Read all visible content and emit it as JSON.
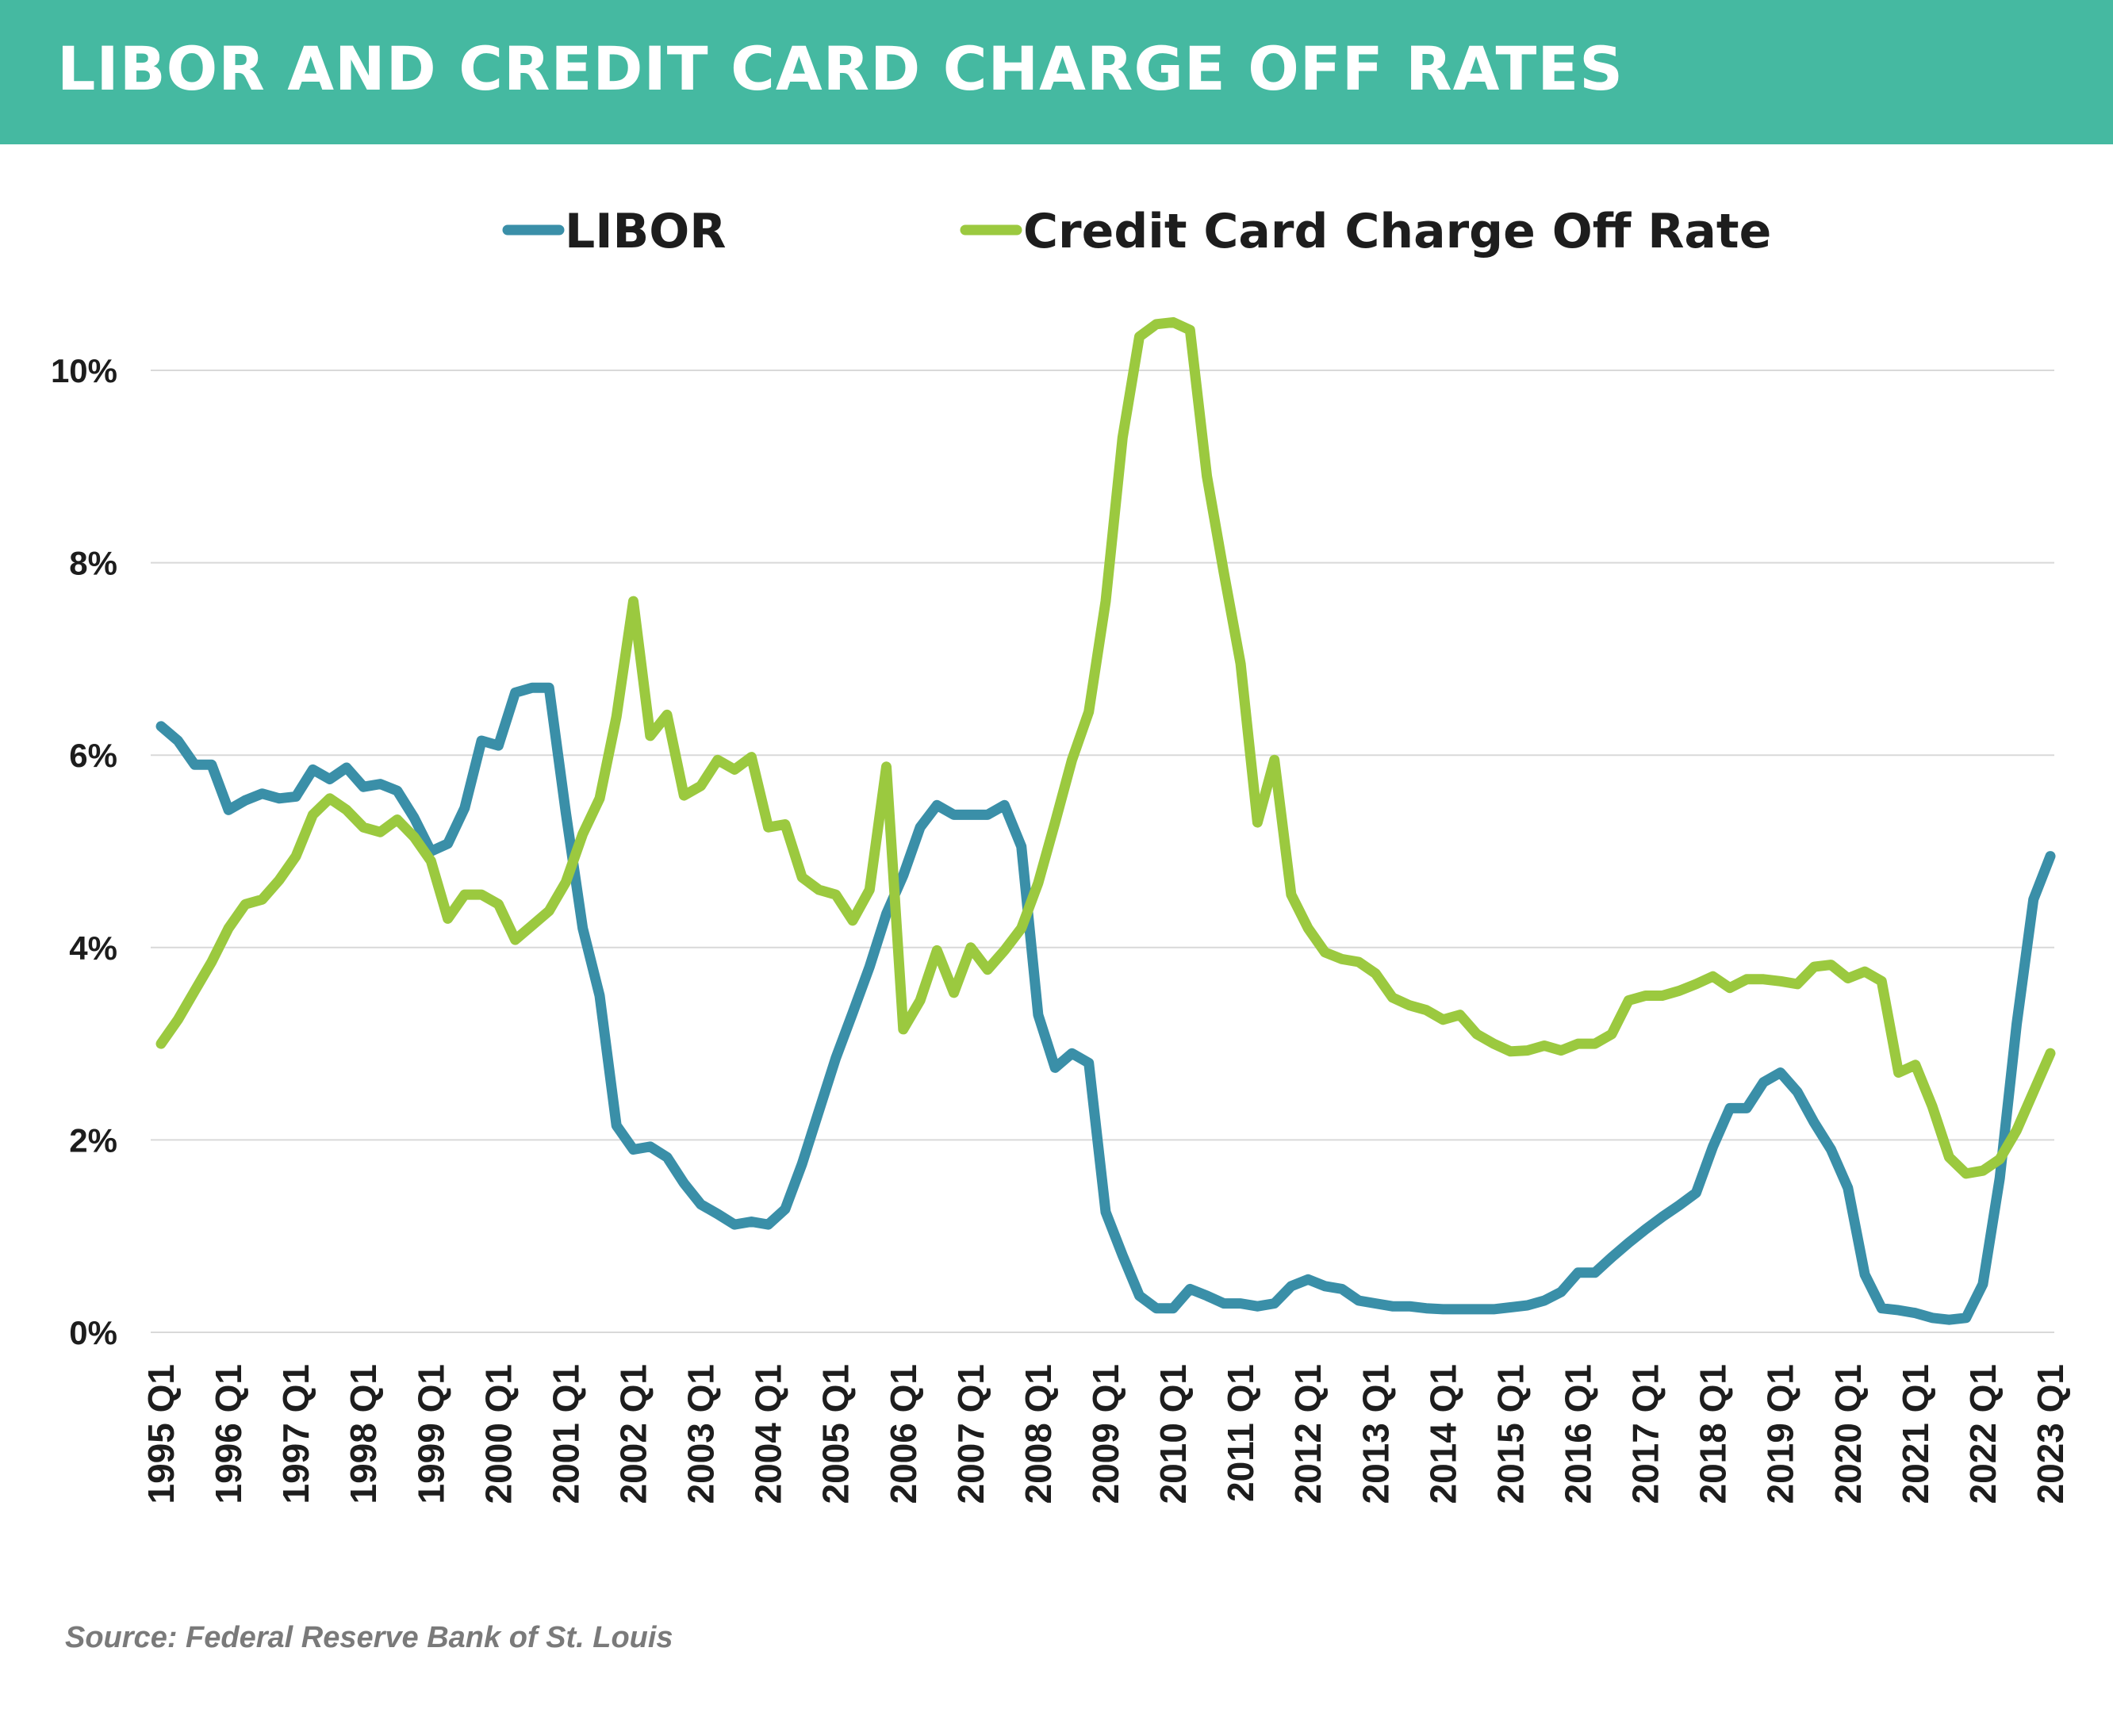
{
  "header": {
    "title": "LIBOR AND CREDIT CARD CHARGE OFF RATES"
  },
  "footer": {
    "source": "Source: Federal Reserve Bank of St. Louis"
  },
  "colors": {
    "title_bar": "#45b9a1",
    "libor": "#3a8fa8",
    "charge_off": "#9bc93f",
    "grid": "#d9d9d9",
    "text": "#1d1d1d"
  },
  "chart_data": {
    "type": "line",
    "title": "LIBOR AND CREDIT CARD CHARGE OFF RATES",
    "xlabel": "",
    "ylabel": "",
    "ylim": [
      0,
      10.5
    ],
    "grid": true,
    "legend_position": "top-center",
    "x_tick_labels": [
      "1995 Q1",
      "1996 Q1",
      "1997 Q1",
      "1998 Q1",
      "1999 Q1",
      "2000 Q1",
      "2001 Q1",
      "2002 Q1",
      "2003 Q1",
      "2004 Q1",
      "2005 Q1",
      "2006 Q1",
      "2007 Q1",
      "2008 Q1",
      "2009 Q1",
      "2010 Q1",
      "2011 Q1",
      "2012 Q1",
      "2013 Q1",
      "2014 Q1",
      "2015 Q1",
      "2016 Q1",
      "2017 Q1",
      "2018 Q1",
      "2019 Q1",
      "2020 Q1",
      "2021 Q1",
      "2022 Q1",
      "2023 Q1"
    ],
    "y_ticks": [
      0,
      2,
      4,
      6,
      8,
      10
    ],
    "y_tick_labels": [
      "0%",
      "2%",
      "4%",
      "6%",
      "8%",
      "10%"
    ],
    "series": [
      {
        "name": "LIBOR",
        "color": "#3a8fa8",
        "points": [
          [
            "1995 Q1",
            6.3
          ],
          [
            "1995 Q2",
            6.15
          ],
          [
            "1995 Q3",
            5.9
          ],
          [
            "1995 Q4",
            5.9
          ],
          [
            "1996 Q1",
            5.43
          ],
          [
            "1996 Q2",
            5.53
          ],
          [
            "1996 Q3",
            5.6
          ],
          [
            "1996 Q4",
            5.55
          ],
          [
            "1997 Q1",
            5.57
          ],
          [
            "1997 Q2",
            5.85
          ],
          [
            "1997 Q3",
            5.75
          ],
          [
            "1997 Q4",
            5.87
          ],
          [
            "1998 Q1",
            5.67
          ],
          [
            "1998 Q2",
            5.7
          ],
          [
            "1998 Q3",
            5.63
          ],
          [
            "1998 Q4",
            5.35
          ],
          [
            "1999 Q1",
            5.0
          ],
          [
            "1999 Q2",
            5.08
          ],
          [
            "1999 Q3",
            5.45
          ],
          [
            "1999 Q4",
            6.15
          ],
          [
            "2000 Q1",
            6.1
          ],
          [
            "2000 Q2",
            6.65
          ],
          [
            "2000 Q3",
            6.7
          ],
          [
            "2000 Q4",
            6.7
          ],
          [
            "2001 Q1",
            5.4
          ],
          [
            "2001 Q2",
            4.2
          ],
          [
            "2001 Q3",
            3.5
          ],
          [
            "2001 Q4",
            2.15
          ],
          [
            "2002 Q1",
            1.9
          ],
          [
            "2002 Q2",
            1.93
          ],
          [
            "2002 Q3",
            1.82
          ],
          [
            "2002 Q4",
            1.55
          ],
          [
            "2003 Q1",
            1.33
          ],
          [
            "2003 Q2",
            1.23
          ],
          [
            "2003 Q3",
            1.12
          ],
          [
            "2003 Q4",
            1.15
          ],
          [
            "2004 Q1",
            1.12
          ],
          [
            "2004 Q2",
            1.28
          ],
          [
            "2004 Q3",
            1.75
          ],
          [
            "2004 Q4",
            2.3
          ],
          [
            "2005 Q1",
            2.85
          ],
          [
            "2005 Q2",
            3.32
          ],
          [
            "2005 Q3",
            3.8
          ],
          [
            "2005 Q4",
            4.35
          ],
          [
            "2006 Q1",
            4.75
          ],
          [
            "2006 Q2",
            5.25
          ],
          [
            "2006 Q3",
            5.48
          ],
          [
            "2006 Q4",
            5.38
          ],
          [
            "2007 Q1",
            5.38
          ],
          [
            "2007 Q2",
            5.38
          ],
          [
            "2007 Q3",
            5.48
          ],
          [
            "2007 Q4",
            5.05
          ],
          [
            "2008 Q1",
            3.3
          ],
          [
            "2008 Q2",
            2.75
          ],
          [
            "2008 Q3",
            2.9
          ],
          [
            "2008 Q4",
            2.8
          ],
          [
            "2009 Q1",
            1.25
          ],
          [
            "2009 Q2",
            0.8
          ],
          [
            "2009 Q3",
            0.38
          ],
          [
            "2009 Q4",
            0.25
          ],
          [
            "2010 Q1",
            0.25
          ],
          [
            "2010 Q2",
            0.45
          ],
          [
            "2010 Q3",
            0.38
          ],
          [
            "2010 Q4",
            0.3
          ],
          [
            "2011 Q1",
            0.3
          ],
          [
            "2011 Q2",
            0.27
          ],
          [
            "2011 Q3",
            0.3
          ],
          [
            "2011 Q4",
            0.48
          ],
          [
            "2012 Q1",
            0.55
          ],
          [
            "2012 Q2",
            0.48
          ],
          [
            "2012 Q3",
            0.45
          ],
          [
            "2012 Q4",
            0.33
          ],
          [
            "2013 Q1",
            0.3
          ],
          [
            "2013 Q2",
            0.27
          ],
          [
            "2013 Q3",
            0.27
          ],
          [
            "2013 Q4",
            0.25
          ],
          [
            "2014 Q1",
            0.24
          ],
          [
            "2014 Q2",
            0.24
          ],
          [
            "2014 Q3",
            0.24
          ],
          [
            "2014 Q4",
            0.24
          ],
          [
            "2015 Q1",
            0.26
          ],
          [
            "2015 Q2",
            0.28
          ],
          [
            "2015 Q3",
            0.33
          ],
          [
            "2015 Q4",
            0.42
          ],
          [
            "2016 Q1",
            0.62
          ],
          [
            "2016 Q2",
            0.62
          ],
          [
            "2016 Q3",
            0.78
          ],
          [
            "2016 Q4",
            0.93
          ],
          [
            "2017 Q1",
            1.07
          ],
          [
            "2017 Q2",
            1.2
          ],
          [
            "2017 Q3",
            1.32
          ],
          [
            "2017 Q4",
            1.45
          ],
          [
            "2018 Q1",
            1.93
          ],
          [
            "2018 Q2",
            2.33
          ],
          [
            "2018 Q3",
            2.33
          ],
          [
            "2018 Q4",
            2.6
          ],
          [
            "2019 Q1",
            2.7
          ],
          [
            "2019 Q2",
            2.5
          ],
          [
            "2019 Q3",
            2.18
          ],
          [
            "2019 Q4",
            1.9
          ],
          [
            "2020 Q1",
            1.5
          ],
          [
            "2020 Q2",
            0.6
          ],
          [
            "2020 Q3",
            0.25
          ],
          [
            "2020 Q4",
            0.23
          ],
          [
            "2021 Q1",
            0.2
          ],
          [
            "2021 Q2",
            0.15
          ],
          [
            "2021 Q3",
            0.13
          ],
          [
            "2021 Q4",
            0.15
          ],
          [
            "2022 Q1",
            0.5
          ],
          [
            "2022 Q2",
            1.6
          ],
          [
            "2022 Q3",
            3.2
          ],
          [
            "2022 Q4",
            4.5
          ],
          [
            "2023 Q1",
            4.95
          ]
        ]
      },
      {
        "name": "Credit Card Charge Off Rate",
        "color": "#9bc93f",
        "points": [
          [
            "1995 Q1",
            3.0
          ],
          [
            "1995 Q2",
            3.25
          ],
          [
            "1995 Q3",
            3.55
          ],
          [
            "1995 Q4",
            3.85
          ],
          [
            "1996 Q1",
            4.2
          ],
          [
            "1996 Q2",
            4.45
          ],
          [
            "1996 Q3",
            4.5
          ],
          [
            "1996 Q4",
            4.7
          ],
          [
            "1997 Q1",
            4.95
          ],
          [
            "1997 Q2",
            5.38
          ],
          [
            "1997 Q3",
            5.55
          ],
          [
            "1997 Q4",
            5.43
          ],
          [
            "1998 Q1",
            5.25
          ],
          [
            "1998 Q2",
            5.2
          ],
          [
            "1998 Q3",
            5.33
          ],
          [
            "1998 Q4",
            5.15
          ],
          [
            "1999 Q1",
            4.9
          ],
          [
            "1999 Q2",
            4.3
          ],
          [
            "1999 Q3",
            4.55
          ],
          [
            "1999 Q4",
            4.55
          ],
          [
            "2000 Q1",
            4.45
          ],
          [
            "2000 Q2",
            4.08
          ],
          [
            "2000 Q3",
            4.23
          ],
          [
            "2000 Q4",
            4.38
          ],
          [
            "2001 Q1",
            4.68
          ],
          [
            "2001 Q2",
            5.18
          ],
          [
            "2001 Q3",
            5.55
          ],
          [
            "2001 Q4",
            6.4
          ],
          [
            "2002 Q1",
            7.6
          ],
          [
            "2002 Q2",
            6.2
          ],
          [
            "2002 Q3",
            6.42
          ],
          [
            "2002 Q4",
            5.58
          ],
          [
            "2003 Q1",
            5.68
          ],
          [
            "2003 Q2",
            5.95
          ],
          [
            "2003 Q3",
            5.85
          ],
          [
            "2003 Q4",
            5.98
          ],
          [
            "2004 Q1",
            5.25
          ],
          [
            "2004 Q2",
            5.28
          ],
          [
            "2004 Q3",
            4.73
          ],
          [
            "2004 Q4",
            4.6
          ],
          [
            "2005 Q1",
            4.55
          ],
          [
            "2005 Q2",
            4.28
          ],
          [
            "2005 Q3",
            4.6
          ],
          [
            "2005 Q4",
            5.88
          ],
          [
            "2006 Q1",
            3.15
          ],
          [
            "2006 Q2",
            3.45
          ],
          [
            "2006 Q3",
            3.97
          ],
          [
            "2006 Q4",
            3.53
          ],
          [
            "2007 Q1",
            4.0
          ],
          [
            "2007 Q2",
            3.77
          ],
          [
            "2007 Q3",
            3.97
          ],
          [
            "2007 Q4",
            4.2
          ],
          [
            "2008 Q1",
            4.67
          ],
          [
            "2008 Q2",
            5.3
          ],
          [
            "2008 Q3",
            5.95
          ],
          [
            "2008 Q4",
            6.45
          ],
          [
            "2009 Q1",
            7.6
          ],
          [
            "2009 Q2",
            9.3
          ],
          [
            "2009 Q3",
            10.35
          ],
          [
            "2009 Q4",
            10.48
          ],
          [
            "2010 Q1",
            10.5
          ],
          [
            "2010 Q2",
            10.42
          ],
          [
            "2010 Q3",
            8.9
          ],
          [
            "2010 Q4",
            7.9
          ],
          [
            "2011 Q1",
            6.95
          ],
          [
            "2011 Q2",
            5.3
          ],
          [
            "2011 Q3",
            5.95
          ],
          [
            "2011 Q4",
            4.55
          ],
          [
            "2012 Q1",
            4.2
          ],
          [
            "2012 Q2",
            3.95
          ],
          [
            "2012 Q3",
            3.88
          ],
          [
            "2012 Q4",
            3.85
          ],
          [
            "2013 Q1",
            3.73
          ],
          [
            "2013 Q2",
            3.48
          ],
          [
            "2013 Q3",
            3.4
          ],
          [
            "2013 Q4",
            3.35
          ],
          [
            "2014 Q1",
            3.25
          ],
          [
            "2014 Q2",
            3.3
          ],
          [
            "2014 Q3",
            3.1
          ],
          [
            "2014 Q4",
            3.0
          ],
          [
            "2015 Q1",
            2.92
          ],
          [
            "2015 Q2",
            2.93
          ],
          [
            "2015 Q3",
            2.98
          ],
          [
            "2015 Q4",
            2.93
          ],
          [
            "2016 Q1",
            3.0
          ],
          [
            "2016 Q2",
            3.0
          ],
          [
            "2016 Q3",
            3.1
          ],
          [
            "2016 Q4",
            3.45
          ],
          [
            "2017 Q1",
            3.5
          ],
          [
            "2017 Q2",
            3.5
          ],
          [
            "2017 Q3",
            3.55
          ],
          [
            "2017 Q4",
            3.62
          ],
          [
            "2018 Q1",
            3.7
          ],
          [
            "2018 Q2",
            3.58
          ],
          [
            "2018 Q3",
            3.67
          ],
          [
            "2018 Q4",
            3.67
          ],
          [
            "2019 Q1",
            3.65
          ],
          [
            "2019 Q2",
            3.62
          ],
          [
            "2019 Q3",
            3.8
          ],
          [
            "2019 Q4",
            3.82
          ],
          [
            "2020 Q1",
            3.68
          ],
          [
            "2020 Q2",
            3.75
          ],
          [
            "2020 Q3",
            3.65
          ],
          [
            "2020 Q4",
            2.7
          ],
          [
            "2021 Q1",
            2.78
          ],
          [
            "2021 Q2",
            2.35
          ],
          [
            "2021 Q3",
            1.82
          ],
          [
            "2021 Q4",
            1.65
          ],
          [
            "2022 Q1",
            1.68
          ],
          [
            "2022 Q2",
            1.8
          ],
          [
            "2022 Q3",
            2.1
          ],
          [
            "2022 Q4",
            2.5
          ],
          [
            "2023 Q1",
            2.9
          ]
        ]
      }
    ]
  }
}
